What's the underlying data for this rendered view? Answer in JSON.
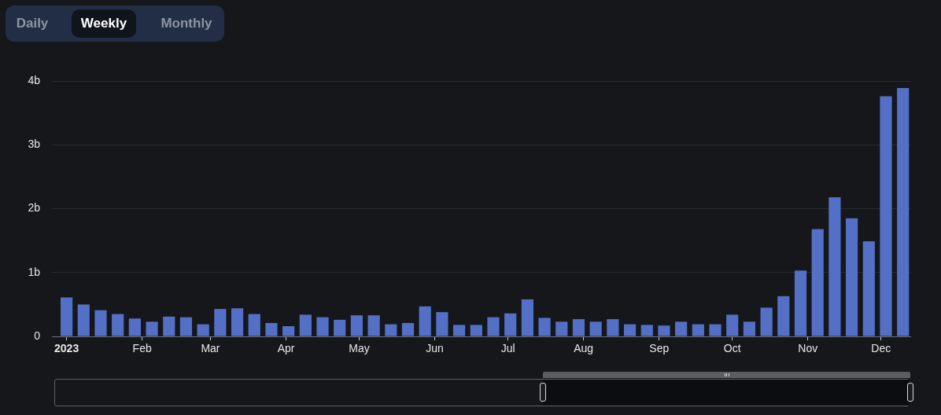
{
  "chart_data": {
    "type": "bar",
    "annotations": [
      "Daily",
      "Weekly",
      "Monthly"
    ],
    "x": [
      "2023-01-01",
      "2023-01-08",
      "2023-01-15",
      "2023-01-22",
      "2023-01-29",
      "2023-02-05",
      "2023-02-12",
      "2023-02-19",
      "2023-02-26",
      "2023-03-05",
      "2023-03-12",
      "2023-03-19",
      "2023-03-26",
      "2023-04-02",
      "2023-04-09",
      "2023-04-16",
      "2023-04-23",
      "2023-04-30",
      "2023-05-07",
      "2023-05-14",
      "2023-05-21",
      "2023-05-28",
      "2023-06-04",
      "2023-06-11",
      "2023-06-18",
      "2023-06-25",
      "2023-07-02",
      "2023-07-09",
      "2023-07-16",
      "2023-07-23",
      "2023-07-30",
      "2023-08-06",
      "2023-08-13",
      "2023-08-20",
      "2023-08-27",
      "2023-09-03",
      "2023-09-10",
      "2023-09-17",
      "2023-09-24",
      "2023-10-01",
      "2023-10-08",
      "2023-10-15",
      "2023-10-22",
      "2023-10-29",
      "2023-11-05",
      "2023-11-12",
      "2023-11-19",
      "2023-11-26",
      "2023-12-03",
      "2023-12-10"
    ],
    "values": [
      0.61,
      0.5,
      0.41,
      0.35,
      0.28,
      0.23,
      0.31,
      0.3,
      0.19,
      0.43,
      0.44,
      0.35,
      0.21,
      0.16,
      0.34,
      0.3,
      0.26,
      0.33,
      0.33,
      0.19,
      0.21,
      0.47,
      0.38,
      0.18,
      0.18,
      0.3,
      0.36,
      0.58,
      0.29,
      0.23,
      0.27,
      0.23,
      0.27,
      0.19,
      0.18,
      0.17,
      0.23,
      0.19,
      0.19,
      0.34,
      0.23,
      0.45,
      0.63,
      1.03,
      1.68,
      2.18,
      1.85,
      1.49,
      3.76,
      3.89
    ],
    "color": "#5470c6",
    "xlim": [
      "2022-12-26",
      "2023-12-13"
    ],
    "xticks": [
      {
        "value": "2023-01-01",
        "label": "2023"
      },
      {
        "value": "2023-02-01",
        "label": "Feb"
      },
      {
        "value": "2023-03-01",
        "label": "Mar"
      },
      {
        "value": "2023-04-01",
        "label": "Apr"
      },
      {
        "value": "2023-05-01",
        "label": "May"
      },
      {
        "value": "2023-06-01",
        "label": "Jun"
      },
      {
        "value": "2023-07-01",
        "label": "Jul"
      },
      {
        "value": "2023-08-01",
        "label": "Aug"
      },
      {
        "value": "2023-09-01",
        "label": "Sep"
      },
      {
        "value": "2023-10-01",
        "label": "Oct"
      },
      {
        "value": "2023-11-01",
        "label": "Nov"
      },
      {
        "value": "2023-12-01",
        "label": "Dec"
      }
    ],
    "ylim": [
      0,
      4
    ],
    "yticks": [
      0,
      {
        "value": 1,
        "label": "1b"
      },
      {
        "value": 2,
        "label": "2b"
      },
      {
        "value": 3,
        "label": "3b"
      },
      {
        "value": 4,
        "label": "4b"
      }
    ],
    "grid": "y"
  }
}
